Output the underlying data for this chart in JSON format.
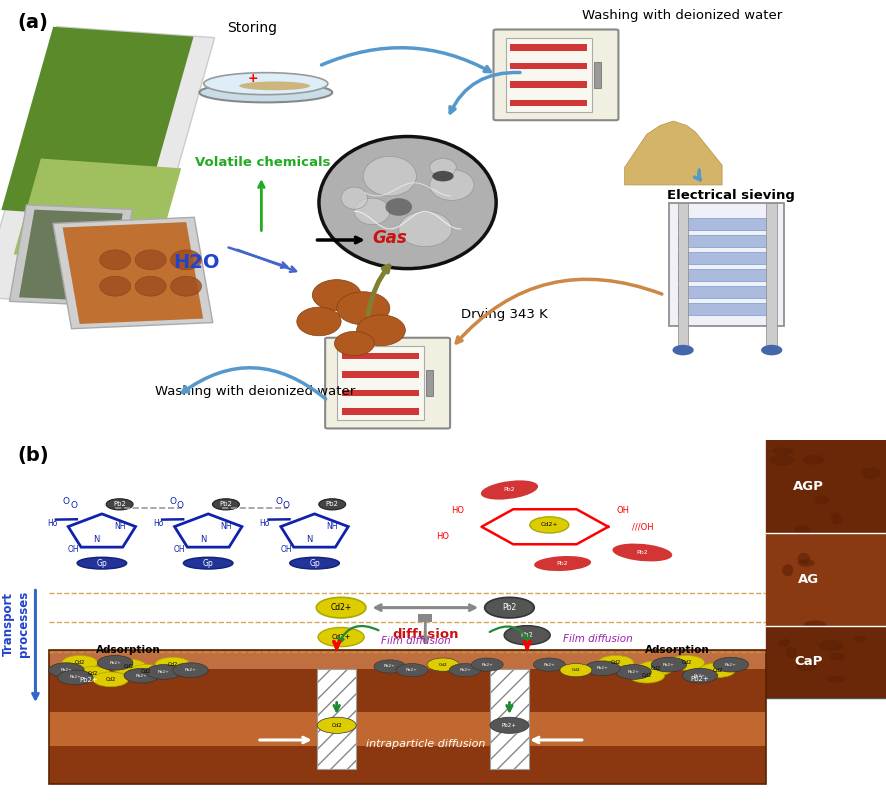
{
  "fig_width": 8.86,
  "fig_height": 8.08,
  "dpi": 100,
  "bg_color": "#ffffff",
  "panel_a_label": "(a)",
  "panel_b_label": "(b)",
  "panel_a_texts": {
    "storing": "Storing",
    "washing_top": "Washing with deionized water",
    "electrical_sieving": "Electrical sieving",
    "drying": "Drying 343 K",
    "volatile": "Volatile chemicals",
    "gas": "Gas",
    "h2o": "H2O",
    "washing_bottom": "Washing with deionized water"
  },
  "panel_b_texts": {
    "transport": "Transport\nprocesses",
    "diffusion": "diffusion",
    "film_diffusion_left": "Film diffusion",
    "film_diffusion_right": "Film diffusion",
    "intraparticle": "intraparticle diffusion",
    "adsorption_left": "Adsorption",
    "adsorption_right": "Adsorption",
    "agp": "AGP",
    "ag": "AG",
    "cap": "CaP"
  },
  "colors": {
    "blue_arrow": "#5599cc",
    "orange_arrow": "#cc8844",
    "green_text": "#22aa22",
    "dark_red_text": "#aa1111",
    "blue_text": "#2244cc",
    "black": "#000000",
    "dark_brown": "#8B4513",
    "yellow": "#FFD700",
    "gray_dark": "#555555",
    "red": "#cc2222",
    "purple_text": "#cc22cc",
    "green_arrow": "#228822",
    "dashed_line": "#cc9944",
    "sand": "#d4b06a",
    "sem_gray": "#b8b8b8",
    "oven_body": "#e8e8e0",
    "oven_red": "#cc3333",
    "sieve_blue": "#aabbdd"
  }
}
